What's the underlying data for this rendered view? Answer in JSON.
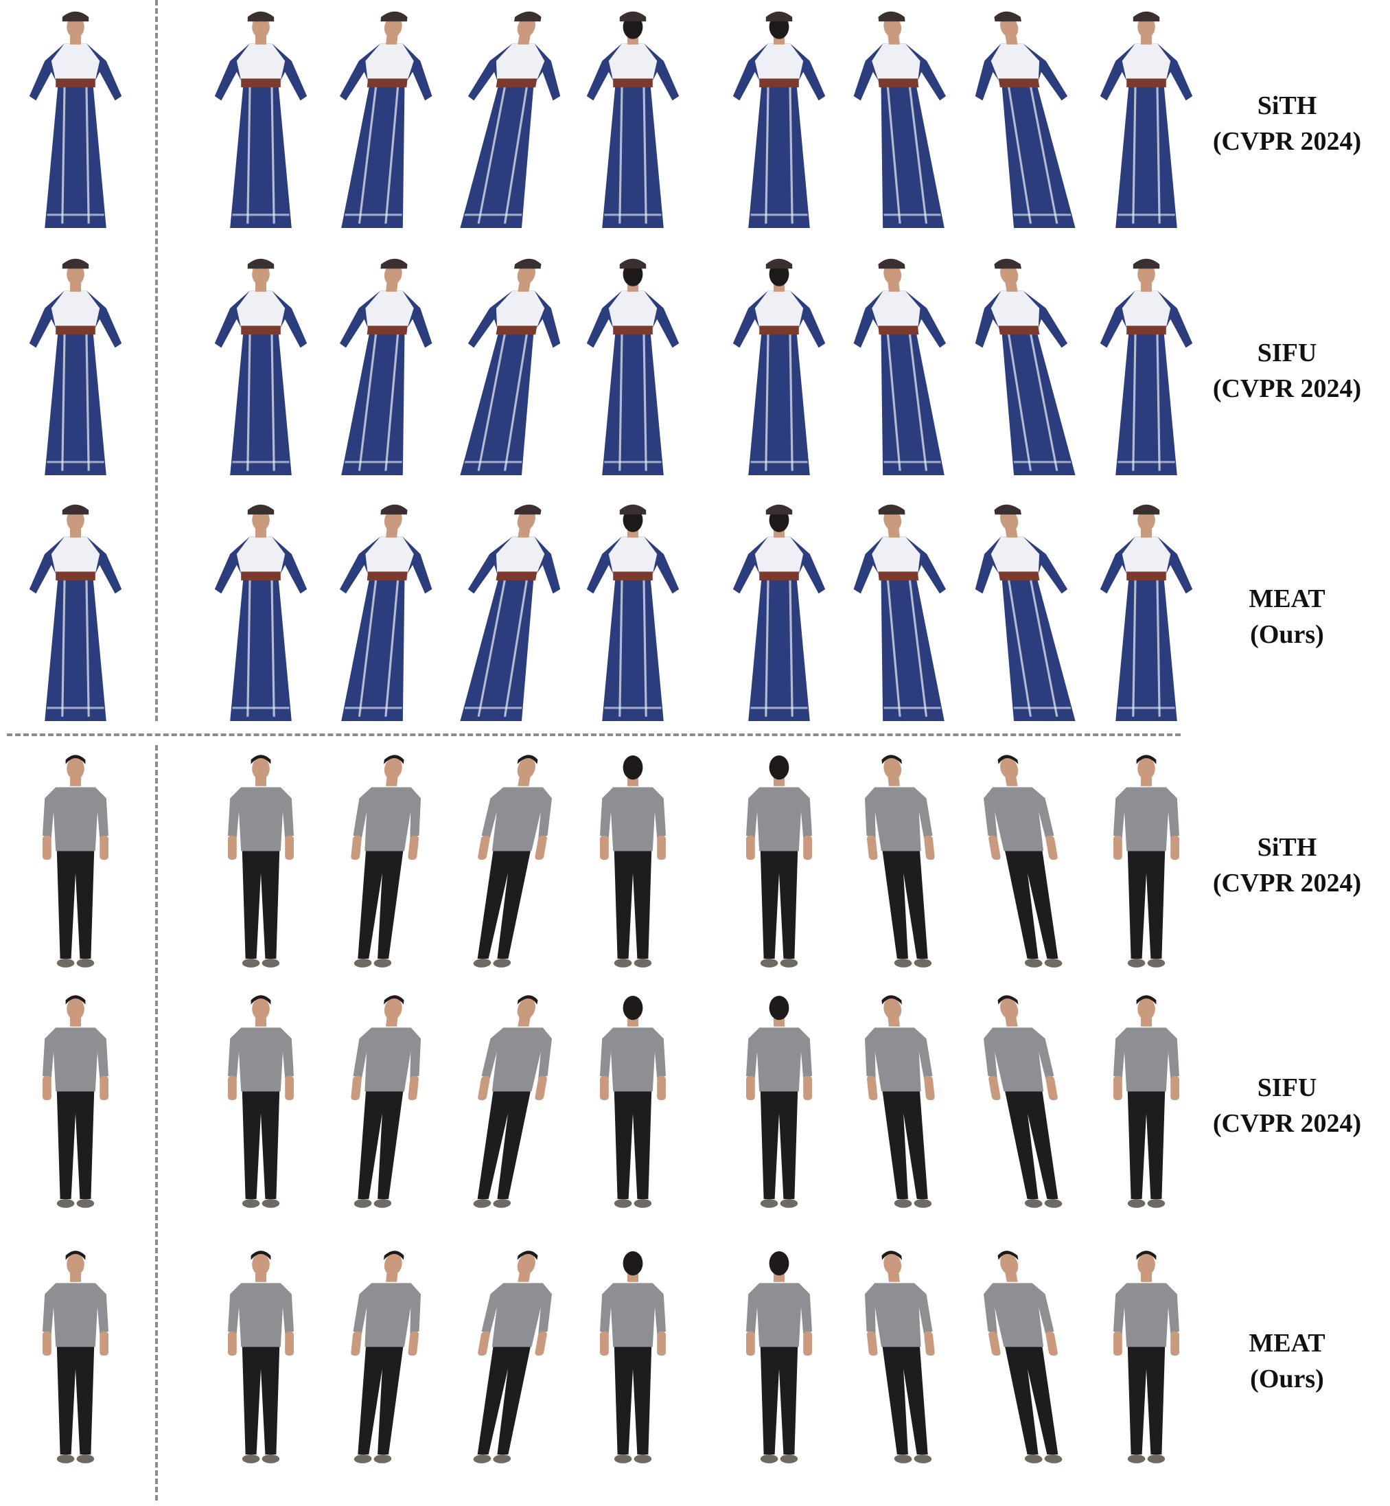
{
  "colors": {
    "dress_blue": "#2b3d7d",
    "dress_white": "#eef0f5",
    "skin": "#c99a7e",
    "hair": "#1e1a1a",
    "shirt_gray": "#8d8f92",
    "pants_black": "#1d1d1f",
    "divider": "#8c8c8c"
  },
  "groups": [
    {
      "subject": "dress",
      "rows": [
        {
          "method": "SiTH",
          "venue": "(CVPR 2024)"
        },
        {
          "method": "SIFU",
          "venue": "(CVPR 2024)"
        },
        {
          "method": "MEAT",
          "venue": "(Ours)"
        }
      ]
    },
    {
      "subject": "casual",
      "rows": [
        {
          "method": "SiTH",
          "venue": "(CVPR 2024)"
        },
        {
          "method": "SIFU",
          "venue": "(CVPR 2024)"
        },
        {
          "method": "MEAT",
          "venue": "(Ours)"
        }
      ]
    }
  ]
}
